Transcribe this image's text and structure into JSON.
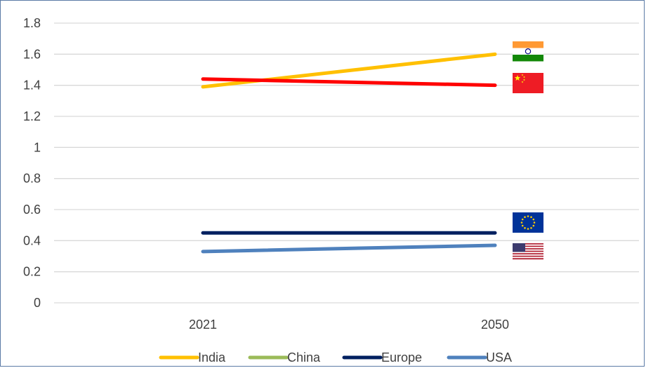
{
  "chart_data": {
    "type": "line",
    "title": "",
    "xlabel": "",
    "ylabel": "",
    "categories": [
      "2021",
      "2050"
    ],
    "ylim": [
      0,
      1.8
    ],
    "yticks": [
      "0",
      "0.2",
      "0.4",
      "0.6",
      "0.8",
      "1",
      "1.2",
      "1.4",
      "1.6",
      "1.8"
    ],
    "grid": true,
    "legend_position": "bottom",
    "series": [
      {
        "name": "India",
        "values": [
          1.39,
          1.6
        ],
        "color": "#ffc000",
        "flag": "india-flag-icon"
      },
      {
        "name": "China",
        "values": [
          1.44,
          1.4
        ],
        "color": "#ff0000",
        "legend_color": "#9bbb59",
        "flag": "china-flag-icon"
      },
      {
        "name": "Europe",
        "values": [
          0.45,
          0.45
        ],
        "color": "#002060",
        "flag": "eu-flag-icon"
      },
      {
        "name": "USA",
        "values": [
          0.33,
          0.37
        ],
        "color": "#4f81bd",
        "flag": "usa-flag-icon"
      }
    ]
  }
}
